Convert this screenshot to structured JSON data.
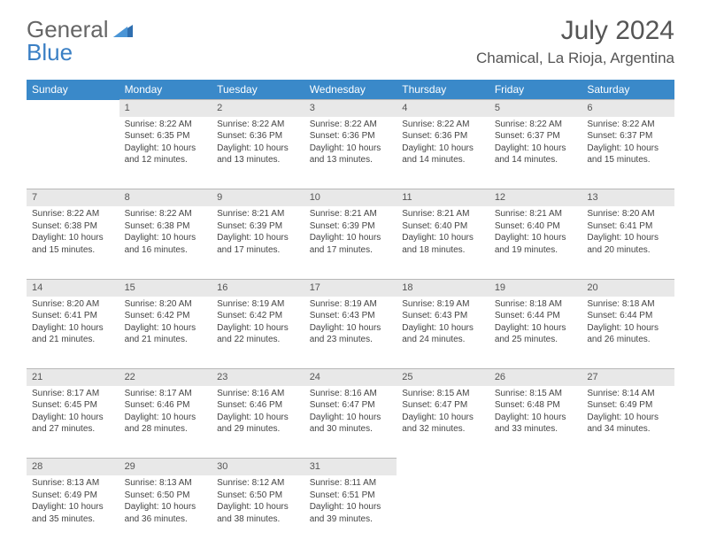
{
  "logo": {
    "text_a": "General",
    "text_b": "Blue"
  },
  "title": "July 2024",
  "location": "Chamical, La Rioja, Argentina",
  "colors": {
    "header_bg": "#3a89c9",
    "header_text": "#ffffff",
    "daynum_bg": "#e8e8e8",
    "daynum_border": "#b8b8b8",
    "body_text": "#444444",
    "logo_gray": "#666666",
    "logo_blue": "#3a7fc4"
  },
  "weekdays": [
    "Sunday",
    "Monday",
    "Tuesday",
    "Wednesday",
    "Thursday",
    "Friday",
    "Saturday"
  ],
  "days": [
    null,
    {
      "n": "1",
      "sr": "8:22 AM",
      "ss": "6:35 PM",
      "dl": "10 hours and 12 minutes."
    },
    {
      "n": "2",
      "sr": "8:22 AM",
      "ss": "6:36 PM",
      "dl": "10 hours and 13 minutes."
    },
    {
      "n": "3",
      "sr": "8:22 AM",
      "ss": "6:36 PM",
      "dl": "10 hours and 13 minutes."
    },
    {
      "n": "4",
      "sr": "8:22 AM",
      "ss": "6:36 PM",
      "dl": "10 hours and 14 minutes."
    },
    {
      "n": "5",
      "sr": "8:22 AM",
      "ss": "6:37 PM",
      "dl": "10 hours and 14 minutes."
    },
    {
      "n": "6",
      "sr": "8:22 AM",
      "ss": "6:37 PM",
      "dl": "10 hours and 15 minutes."
    },
    {
      "n": "7",
      "sr": "8:22 AM",
      "ss": "6:38 PM",
      "dl": "10 hours and 15 minutes."
    },
    {
      "n": "8",
      "sr": "8:22 AM",
      "ss": "6:38 PM",
      "dl": "10 hours and 16 minutes."
    },
    {
      "n": "9",
      "sr": "8:21 AM",
      "ss": "6:39 PM",
      "dl": "10 hours and 17 minutes."
    },
    {
      "n": "10",
      "sr": "8:21 AM",
      "ss": "6:39 PM",
      "dl": "10 hours and 17 minutes."
    },
    {
      "n": "11",
      "sr": "8:21 AM",
      "ss": "6:40 PM",
      "dl": "10 hours and 18 minutes."
    },
    {
      "n": "12",
      "sr": "8:21 AM",
      "ss": "6:40 PM",
      "dl": "10 hours and 19 minutes."
    },
    {
      "n": "13",
      "sr": "8:20 AM",
      "ss": "6:41 PM",
      "dl": "10 hours and 20 minutes."
    },
    {
      "n": "14",
      "sr": "8:20 AM",
      "ss": "6:41 PM",
      "dl": "10 hours and 21 minutes."
    },
    {
      "n": "15",
      "sr": "8:20 AM",
      "ss": "6:42 PM",
      "dl": "10 hours and 21 minutes."
    },
    {
      "n": "16",
      "sr": "8:19 AM",
      "ss": "6:42 PM",
      "dl": "10 hours and 22 minutes."
    },
    {
      "n": "17",
      "sr": "8:19 AM",
      "ss": "6:43 PM",
      "dl": "10 hours and 23 minutes."
    },
    {
      "n": "18",
      "sr": "8:19 AM",
      "ss": "6:43 PM",
      "dl": "10 hours and 24 minutes."
    },
    {
      "n": "19",
      "sr": "8:18 AM",
      "ss": "6:44 PM",
      "dl": "10 hours and 25 minutes."
    },
    {
      "n": "20",
      "sr": "8:18 AM",
      "ss": "6:44 PM",
      "dl": "10 hours and 26 minutes."
    },
    {
      "n": "21",
      "sr": "8:17 AM",
      "ss": "6:45 PM",
      "dl": "10 hours and 27 minutes."
    },
    {
      "n": "22",
      "sr": "8:17 AM",
      "ss": "6:46 PM",
      "dl": "10 hours and 28 minutes."
    },
    {
      "n": "23",
      "sr": "8:16 AM",
      "ss": "6:46 PM",
      "dl": "10 hours and 29 minutes."
    },
    {
      "n": "24",
      "sr": "8:16 AM",
      "ss": "6:47 PM",
      "dl": "10 hours and 30 minutes."
    },
    {
      "n": "25",
      "sr": "8:15 AM",
      "ss": "6:47 PM",
      "dl": "10 hours and 32 minutes."
    },
    {
      "n": "26",
      "sr": "8:15 AM",
      "ss": "6:48 PM",
      "dl": "10 hours and 33 minutes."
    },
    {
      "n": "27",
      "sr": "8:14 AM",
      "ss": "6:49 PM",
      "dl": "10 hours and 34 minutes."
    },
    {
      "n": "28",
      "sr": "8:13 AM",
      "ss": "6:49 PM",
      "dl": "10 hours and 35 minutes."
    },
    {
      "n": "29",
      "sr": "8:13 AM",
      "ss": "6:50 PM",
      "dl": "10 hours and 36 minutes."
    },
    {
      "n": "30",
      "sr": "8:12 AM",
      "ss": "6:50 PM",
      "dl": "10 hours and 38 minutes."
    },
    {
      "n": "31",
      "sr": "8:11 AM",
      "ss": "6:51 PM",
      "dl": "10 hours and 39 minutes."
    },
    null,
    null,
    null
  ],
  "labels": {
    "sunrise": "Sunrise:",
    "sunset": "Sunset:",
    "daylight": "Daylight:"
  }
}
